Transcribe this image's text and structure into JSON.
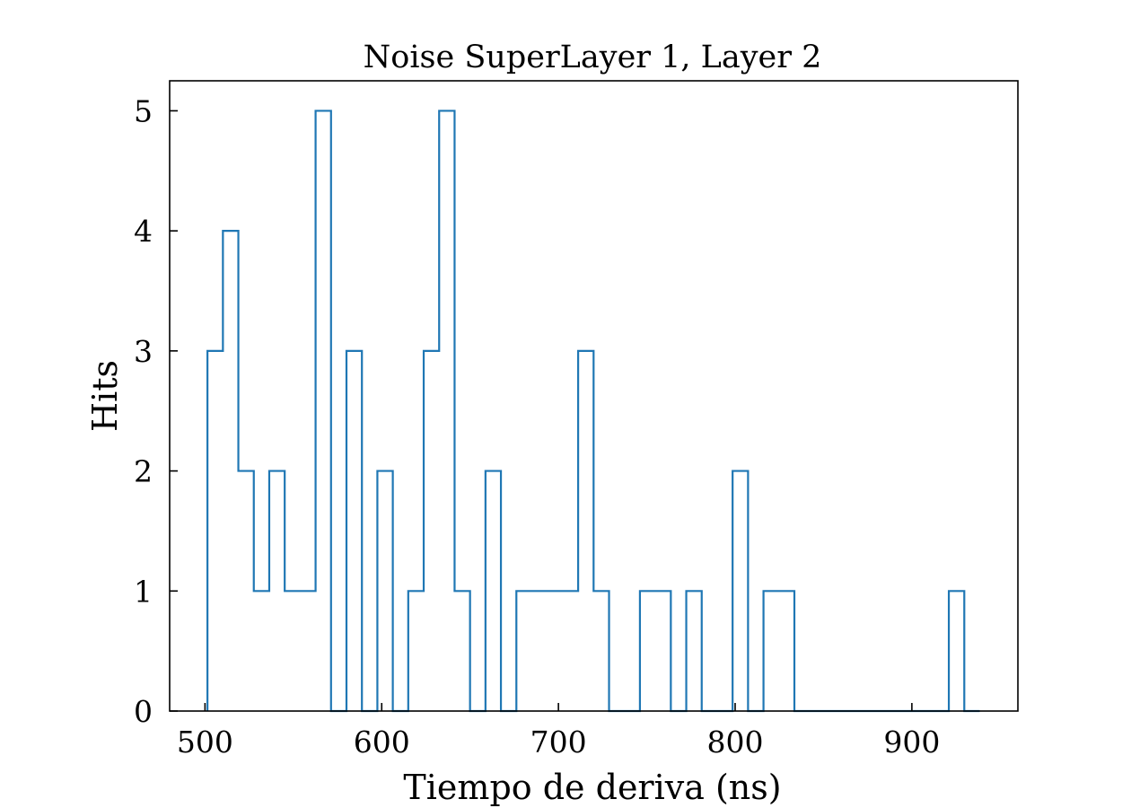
{
  "chart_data": {
    "type": "histogram",
    "title": "Noise SuperLayer 1, Layer 2",
    "xlabel": "Tiempo de deriva (ns)",
    "ylabel": "Hits",
    "xlim": [
      480,
      960
    ],
    "ylim": [
      0,
      5.25
    ],
    "xticks": [
      500,
      600,
      700,
      800,
      900
    ],
    "yticks": [
      0,
      1,
      2,
      3,
      4,
      5
    ],
    "bin_width": 8.74,
    "bin_start": 501.4,
    "counts": [
      3,
      4,
      2,
      1,
      2,
      1,
      1,
      5,
      0,
      3,
      0,
      2,
      0,
      1,
      3,
      5,
      1,
      0,
      2,
      0,
      1,
      1,
      1,
      1,
      3,
      1,
      0,
      0,
      1,
      1,
      0,
      1,
      0,
      0,
      2,
      0,
      1,
      1,
      0,
      0,
      0,
      0,
      0,
      0,
      0,
      0,
      0,
      0,
      1,
      0
    ],
    "line_color": "#1f77b4",
    "grid": false,
    "legend": "none"
  }
}
